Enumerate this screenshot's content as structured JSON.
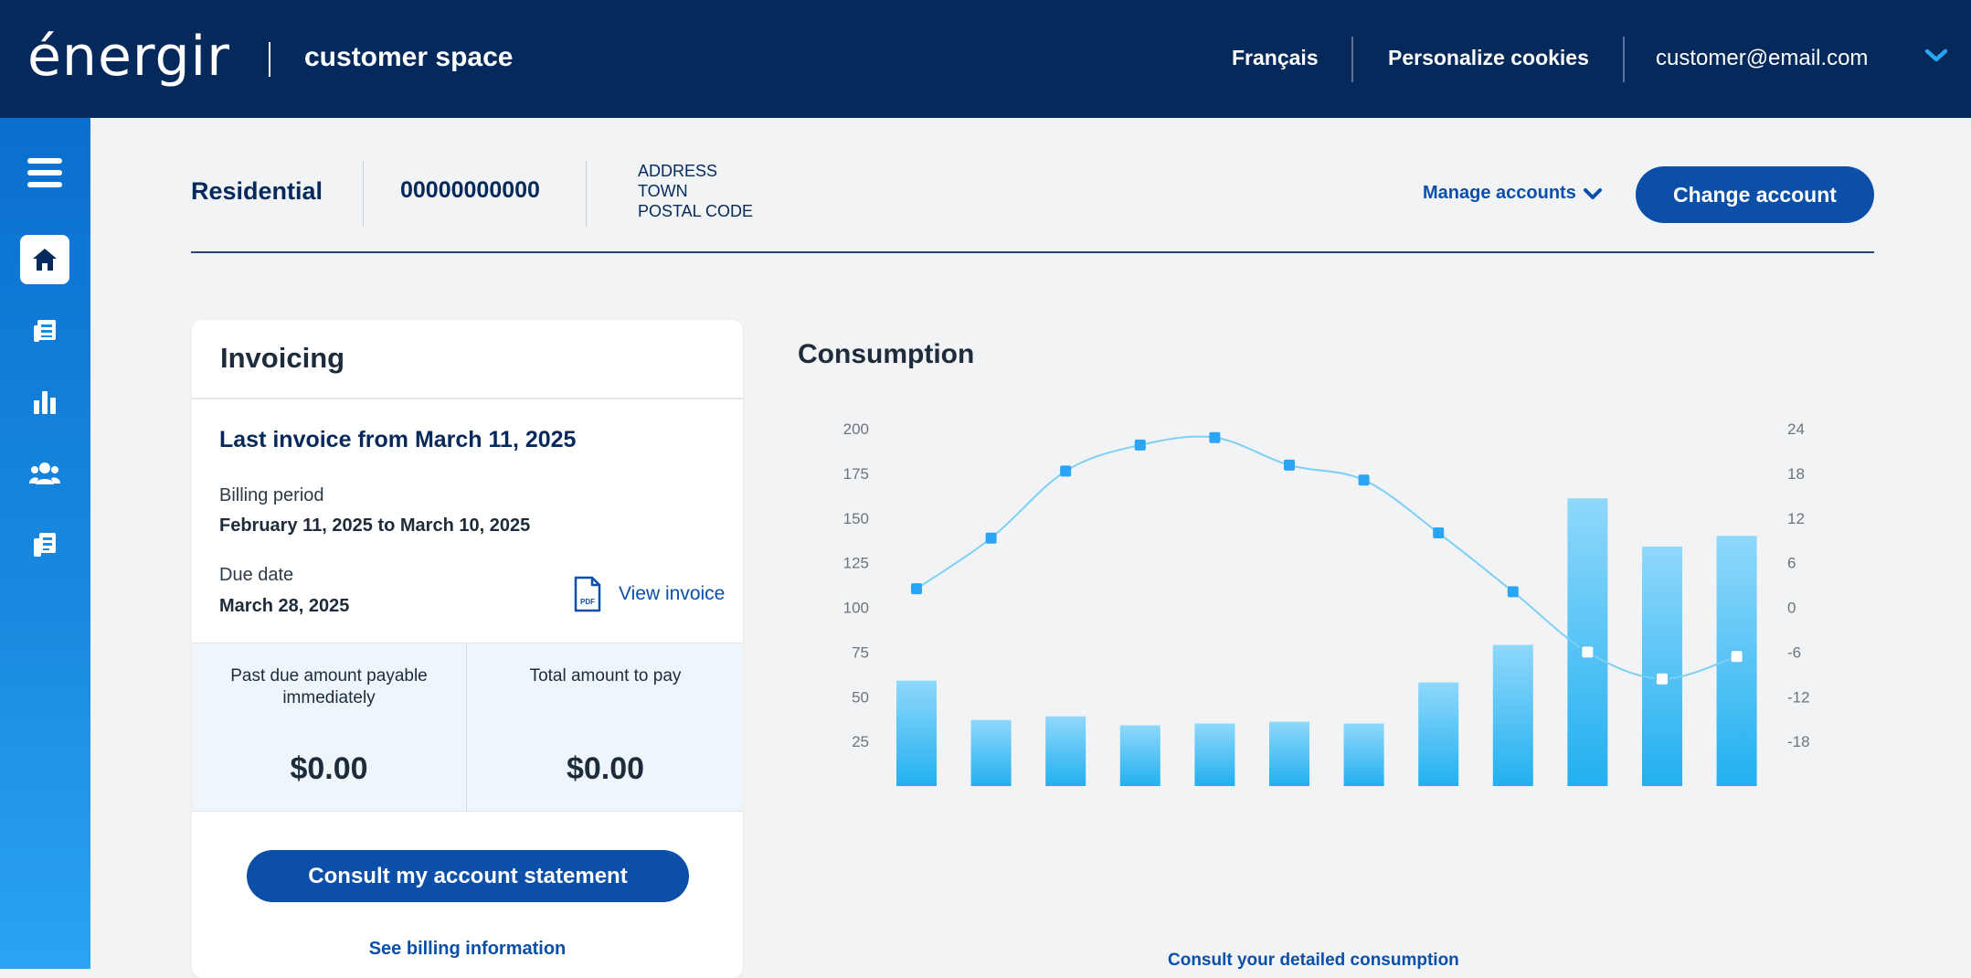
{
  "header": {
    "logo_text": "énergir",
    "app_title": "customer space",
    "lang_link": "Français",
    "cookies_link": "Personalize cookies",
    "user_email": "customer@email.com"
  },
  "sidebar": {
    "items": [
      {
        "icon": "menu-icon"
      },
      {
        "icon": "home-icon",
        "active": true
      },
      {
        "icon": "invoice-icon"
      },
      {
        "icon": "chart-icon"
      },
      {
        "icon": "users-icon"
      },
      {
        "icon": "documents-icon"
      }
    ]
  },
  "account": {
    "type": "Residential",
    "number": "00000000000",
    "address_line1": "ADDRESS",
    "address_line2": "TOWN",
    "address_line3": "POSTAL CODE",
    "manage_label": "Manage accounts",
    "change_label": "Change account"
  },
  "invoicing": {
    "title": "Invoicing",
    "last_invoice": "Last invoice from March 11, 2025",
    "billing_period_label": "Billing period",
    "billing_period_value": "February 11, 2025 to March 10, 2025",
    "due_date_label": "Due date",
    "due_date_value": "March 28, 2025",
    "view_invoice": "View invoice",
    "pdf_badge": "PDF",
    "past_due_label": "Past due amount payable immediately",
    "past_due_value": "$0.00",
    "total_label": "Total amount to pay",
    "total_value": "$0.00",
    "consult_button": "Consult my account statement",
    "billing_info_link": "See billing information"
  },
  "consumption": {
    "title": "Consumption",
    "detail_link": "Consult your detailed consumption"
  },
  "colors": {
    "navy": "#04295a",
    "brand_blue": "#0b4fa8",
    "accent": "#2aa4f4",
    "bar_light": "#8fd8fb",
    "bar_dark": "#22b0f0"
  },
  "chart_data": {
    "type": "bar",
    "left_ticks": [
      200,
      175,
      150,
      125,
      100,
      75,
      50,
      25
    ],
    "right_ticks": [
      24,
      18,
      12,
      6,
      0,
      -6,
      -12,
      -18
    ],
    "ylim": [
      0,
      200
    ],
    "y2lim": [
      -24,
      24
    ],
    "bar_values": [
      59,
      37,
      39,
      34,
      35,
      36,
      35,
      58,
      79,
      161,
      134,
      140
    ],
    "line_values": [
      2.5,
      9.3,
      18.3,
      21.8,
      22.8,
      19.1,
      17.1,
      10,
      2.1,
      -6,
      -9.6,
      -6.6
    ],
    "line_open_marker_from": 9
  }
}
